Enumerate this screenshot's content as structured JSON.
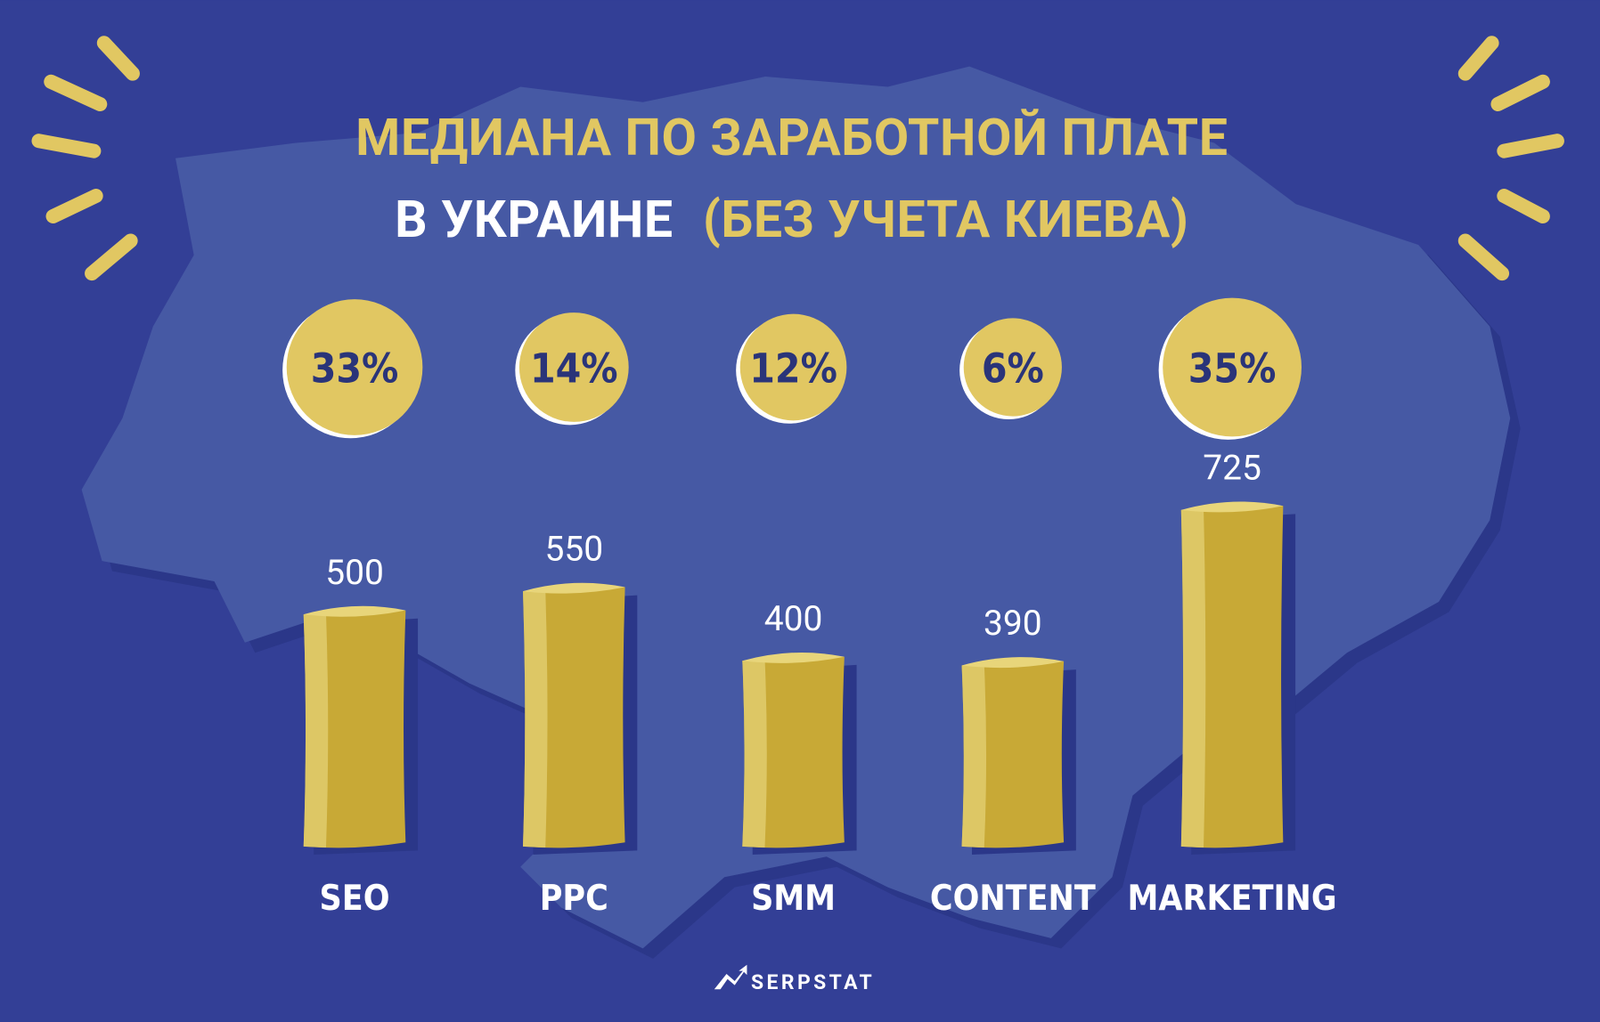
{
  "chart_data": {
    "type": "bar",
    "title": [
      "МЕДИАНА ПО ЗАРАБОТНОЙ ПЛАТЕ",
      "В УКРАИНЕ",
      "(БЕЗ УЧЕТА КИЕВА)"
    ],
    "categories": [
      "SEO",
      "PPC",
      "SMM",
      "CONTENT",
      "MARKETING"
    ],
    "values": [
      500,
      550,
      400,
      390,
      725
    ],
    "color": "#c8a936",
    "shares": {
      "values": [
        33,
        14,
        12,
        6,
        35
      ],
      "value_labels": [
        "33%",
        "14%",
        "12%",
        "6%",
        "35%"
      ],
      "color": "#e1c762"
    },
    "brand": "SERPSTAT"
  }
}
